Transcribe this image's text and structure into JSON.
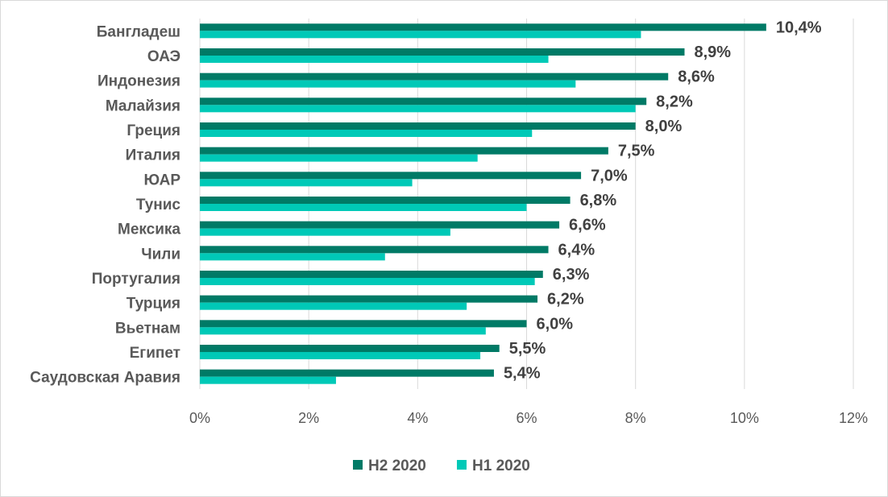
{
  "chart_data": {
    "type": "bar",
    "orientation": "horizontal",
    "categories": [
      "Бангладеш",
      "ОАЭ",
      "Индонезия",
      "Малайзия",
      "Греция",
      "Италия",
      "ЮАР",
      "Тунис",
      "Мексика",
      "Чили",
      "Португалия",
      "Турция",
      "Вьетнам",
      "Египет",
      "Саудовская Аравия"
    ],
    "series": [
      {
        "name": "H2 2020",
        "color": "#007a66",
        "values": [
          10.4,
          8.9,
          8.6,
          8.2,
          8.0,
          7.5,
          7.0,
          6.8,
          6.6,
          6.4,
          6.3,
          6.2,
          6.0,
          5.5,
          5.4
        ],
        "labels": [
          "10,4%",
          "8,9%",
          "8,6%",
          "8,2%",
          "8,0%",
          "7,5%",
          "7,0%",
          "6,8%",
          "6,6%",
          "6,4%",
          "6,3%",
          "6,2%",
          "6,0%",
          "5,5%",
          "5,4%"
        ]
      },
      {
        "name": "H1 2020",
        "color": "#00c9b7",
        "values": [
          8.1,
          6.4,
          6.9,
          8.0,
          6.1,
          5.1,
          3.9,
          6.0,
          4.6,
          3.4,
          6.15,
          4.9,
          5.25,
          5.15,
          2.5
        ]
      }
    ],
    "xlim": [
      0,
      12
    ],
    "xticks": [
      0,
      2,
      4,
      6,
      8,
      10,
      12
    ],
    "xtick_labels": [
      "0%",
      "2%",
      "4%",
      "6%",
      "8%",
      "10%",
      "12%"
    ],
    "grid": "vertical",
    "legend": "bottom",
    "title": "",
    "xlabel": "",
    "ylabel": ""
  }
}
